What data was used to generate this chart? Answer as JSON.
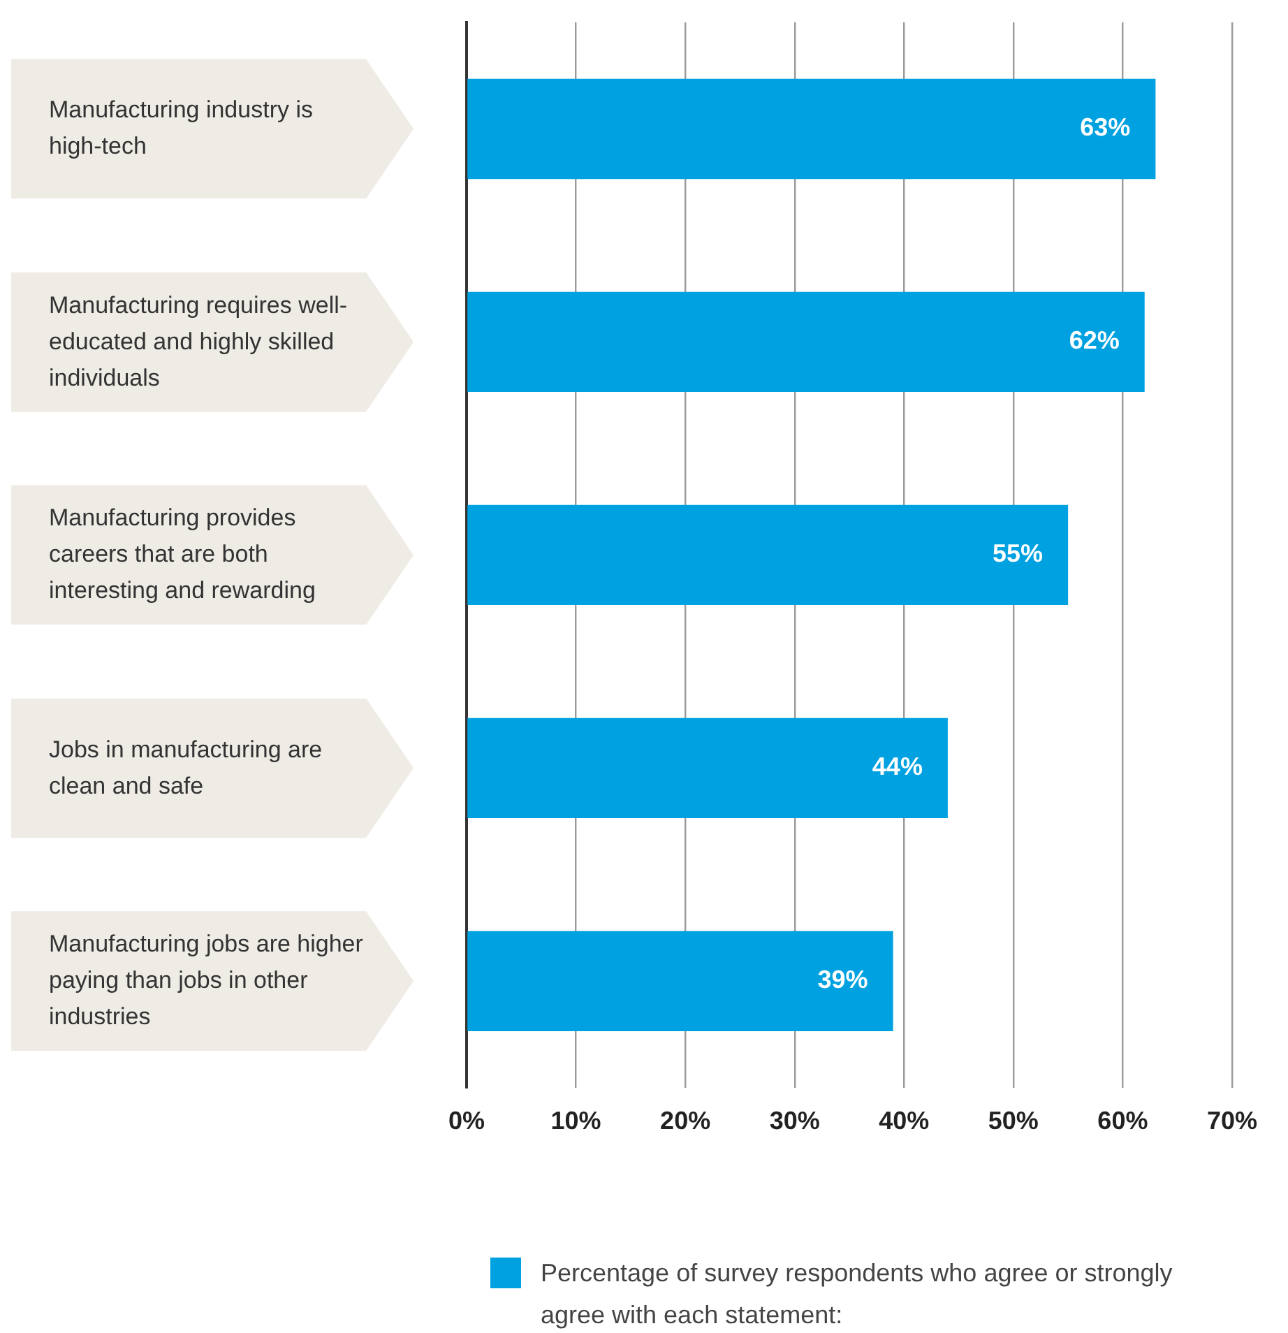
{
  "chart_data": {
    "type": "bar",
    "orientation": "horizontal",
    "categories": [
      "Manufacturing industry is high-tech",
      "Manufacturing requires well-educated and highly skilled individuals",
      "Manufacturing provides careers that are both interesting and rewarding",
      "Jobs in manufacturing are clean and safe",
      "Manufacturing jobs are higher paying than jobs in other industries"
    ],
    "series": [
      {
        "name": "Percentage of survey respondents who agree or strongly agree with each statement:",
        "color": "#00a1e0",
        "values": [
          63,
          62,
          55,
          44,
          39
        ],
        "value_labels": [
          "63%",
          "62%",
          "55%",
          "44%",
          "39%"
        ]
      }
    ],
    "xlim": [
      0,
      70
    ],
    "xticks": [
      {
        "value": 0,
        "label": "0%"
      },
      {
        "value": 10,
        "label": "10%"
      },
      {
        "value": 20,
        "label": "20%"
      },
      {
        "value": 30,
        "label": "30%"
      },
      {
        "value": 40,
        "label": "40%"
      },
      {
        "value": 50,
        "label": "50%"
      },
      {
        "value": 60,
        "label": "60%"
      },
      {
        "value": 70,
        "label": "70%"
      }
    ],
    "grid": "x",
    "legend": "bottom"
  }
}
